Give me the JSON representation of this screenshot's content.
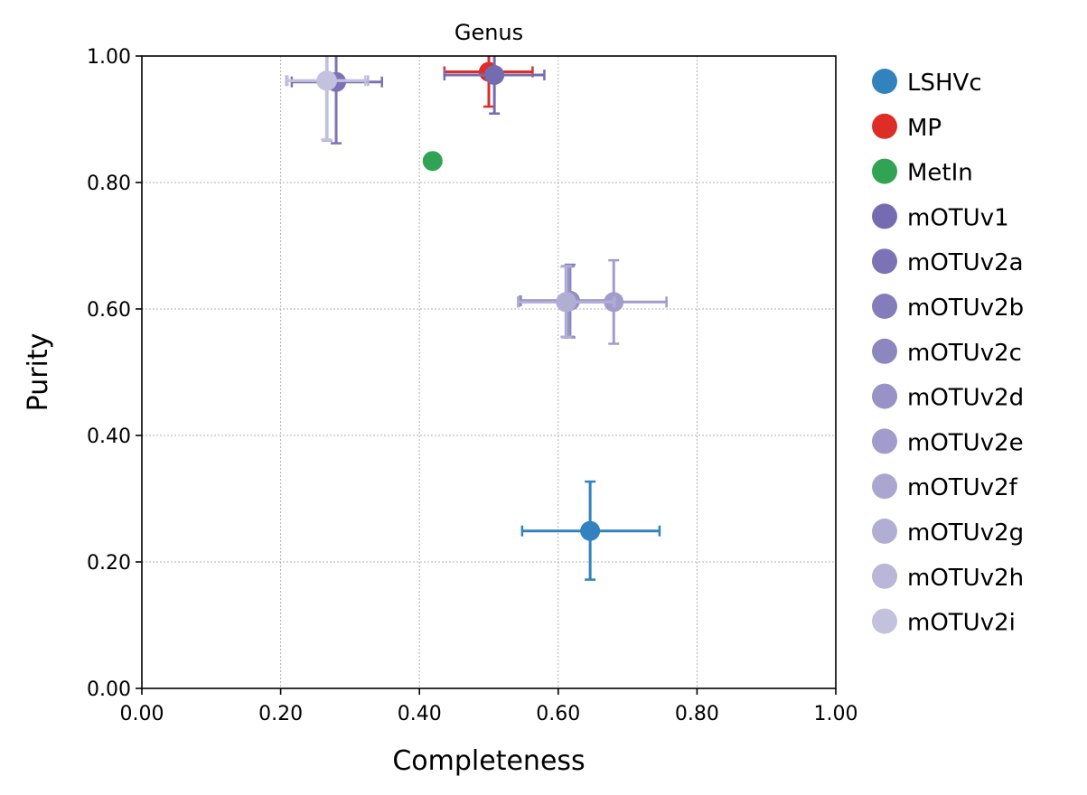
{
  "chart_data": {
    "type": "scatter",
    "title": "Genus",
    "xlabel": "Completeness",
    "ylabel": "Purity",
    "xlim": [
      0,
      1
    ],
    "ylim": [
      0,
      1
    ],
    "xticks": [
      "0.00",
      "0.20",
      "0.40",
      "0.60",
      "0.80",
      "1.00"
    ],
    "yticks": [
      "0.00",
      "0.20",
      "0.40",
      "0.60",
      "0.80",
      "1.00"
    ],
    "grid": true,
    "legend_position": "right, outside plot",
    "series": [
      {
        "name": "LSHVc",
        "color": "#3182bd",
        "x": 0.646,
        "y": 0.249,
        "xerr": [
          0.548,
          0.746
        ],
        "yerr": [
          0.172,
          0.327
        ]
      },
      {
        "name": "MP",
        "color": "#de2d26",
        "x": 0.5,
        "y": 0.975,
        "xerr": [
          0.436,
          0.563
        ],
        "yerr": [
          0.92,
          1.0
        ]
      },
      {
        "name": "MetIn",
        "color": "#31a354",
        "x": 0.419,
        "y": 0.834
      },
      {
        "name": "mOTUv1",
        "color": "#756bb1",
        "x": 0.508,
        "y": 0.97,
        "xerr": [
          0.436,
          0.58
        ],
        "yerr": [
          0.909,
          1.0
        ]
      },
      {
        "name": "mOTUv2a",
        "color": "#7b73b5",
        "x": 0.28,
        "y": 0.959,
        "xerr": [
          0.216,
          0.346
        ],
        "yerr": [
          0.862,
          1.0
        ]
      },
      {
        "name": "mOTUv2b",
        "color": "#847dbb",
        "x": 0.617,
        "y": 0.613,
        "xerr": [
          0.546,
          0.69
        ],
        "yerr": [
          0.555,
          0.67
        ]
      },
      {
        "name": "mOTUv2c",
        "color": "#8d87c0",
        "x": 0.616,
        "y": 0.613,
        "xerr": [
          0.545,
          0.688
        ],
        "yerr": [
          0.556,
          0.668
        ]
      },
      {
        "name": "mOTUv2d",
        "color": "#9892c6",
        "x": 0.615,
        "y": 0.612,
        "xerr": [
          0.544,
          0.686
        ],
        "yerr": [
          0.556,
          0.667
        ]
      },
      {
        "name": "mOTUv2e",
        "color": "#a19ccb",
        "x": 0.68,
        "y": 0.611,
        "xerr": [
          0.603,
          0.756
        ],
        "yerr": [
          0.545,
          0.677
        ]
      },
      {
        "name": "mOTUv2f",
        "color": "#aaa6d0",
        "x": 0.612,
        "y": 0.611,
        "xerr": [
          0.542,
          0.682
        ],
        "yerr": [
          0.555,
          0.668
        ]
      },
      {
        "name": "mOTUv2g",
        "color": "#b1aed4",
        "x": 0.611,
        "y": 0.611,
        "xerr": [
          0.542,
          0.68
        ],
        "yerr": [
          0.556,
          0.667
        ]
      },
      {
        "name": "mOTUv2h",
        "color": "#b9b7d9",
        "x": 0.267,
        "y": 0.961,
        "xerr": [
          0.208,
          0.326
        ],
        "yerr": [
          0.866,
          1.0
        ]
      },
      {
        "name": "mOTUv2i",
        "color": "#c2c1de",
        "x": 0.266,
        "y": 0.961,
        "xerr": [
          0.21,
          0.322
        ],
        "yerr": [
          0.868,
          1.0
        ]
      }
    ]
  }
}
